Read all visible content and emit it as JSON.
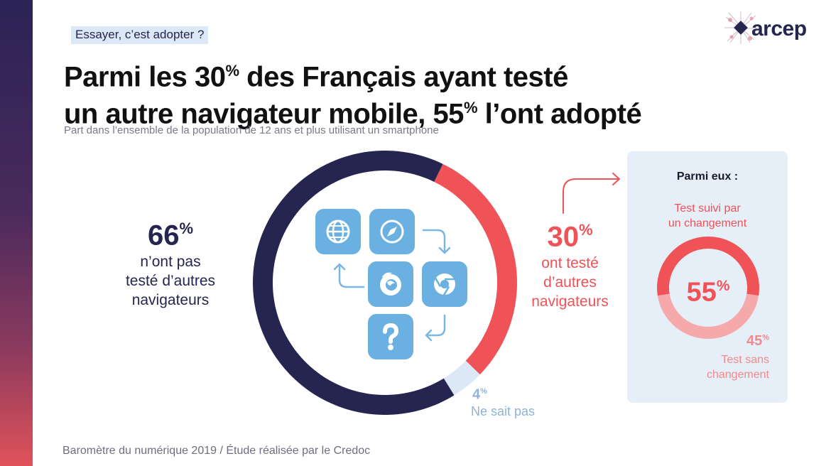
{
  "kicker": "Essayer, c’est adopter ?",
  "title_line1": "Parmi les 30% des Français ayant testé",
  "title_line2": "un autre navigateur mobile, 55% l’ont adopté",
  "title_parts": {
    "a": "Parmi les 30",
    "a_pct": "%",
    "b": " des Français ayant testé",
    "c": "un autre navigateur mobile, 55",
    "c_pct": "%",
    "d": " l’ont adopté"
  },
  "subtitle": "Part dans l’ensemble de la population de 12 ans et plus utilisant un smartphone",
  "logo_text": "arcep",
  "footer": "Baromètre du numérique 2019 / Étude réalisée par le Credoc",
  "colors": {
    "navy": "#262550",
    "coral": "#ef5257",
    "light_blue": "#dde8f7",
    "pale_coral": "#f5a9ab",
    "icon_blue": "#6ab0e0"
  },
  "left_stat": {
    "value": "66",
    "pct": "%",
    "label_1": "n’ont pas",
    "label_2": "testé d’autres",
    "label_3": "navigateurs"
  },
  "right_stat": {
    "value": "30",
    "pct": "%",
    "label_1": "ont testé",
    "label_2": "d’autres",
    "label_3": "navigateurs"
  },
  "unknown_stat": {
    "value": "4",
    "pct": "%",
    "label": "Ne sait pas"
  },
  "panel": {
    "title": "Parmi eux :",
    "top_label_1": "Test suivi par",
    "top_label_2": "un changement",
    "main_value": "55",
    "main_pct": "%",
    "small_value": "45",
    "small_pct": "%",
    "bottom_label_1": "Test sans",
    "bottom_label_2": "changement"
  },
  "icons": [
    "globe-icon",
    "compass-icon",
    "firefox-icon",
    "chrome-icon",
    "question-icon"
  ],
  "chart_data": [
    {
      "type": "pie",
      "variant": "donut",
      "categories": [
        "n’ont pas testé d’autres navigateurs",
        "ont testé d’autres navigateurs",
        "Ne sait pas"
      ],
      "values": [
        66,
        30,
        4
      ],
      "unit": "%",
      "colors": [
        "#262550",
        "#ef5257",
        "#dde8f7"
      ]
    },
    {
      "type": "pie",
      "variant": "donut",
      "categories": [
        "Test suivi par un changement",
        "Test sans changement"
      ],
      "values": [
        55,
        45
      ],
      "unit": "%",
      "colors": [
        "#ef5257",
        "#f5a9ab"
      ]
    }
  ]
}
